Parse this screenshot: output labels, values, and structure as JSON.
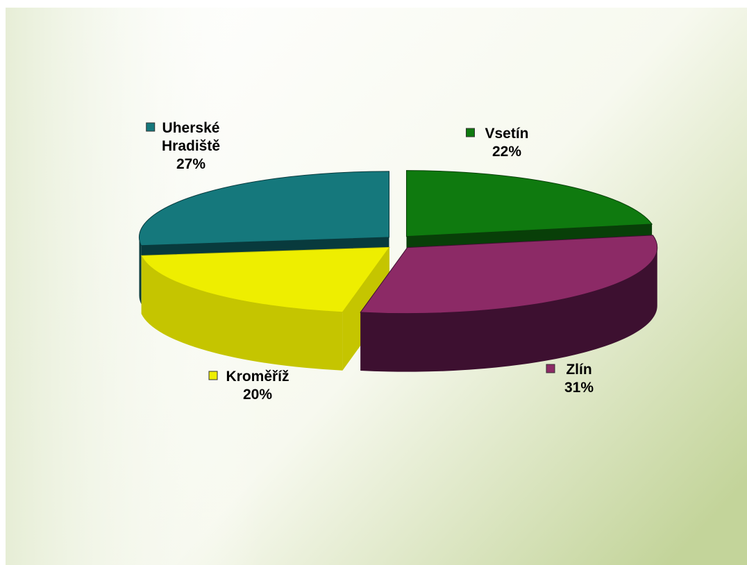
{
  "chart_data": {
    "type": "pie",
    "three_d": true,
    "exploded": true,
    "slices": [
      {
        "name": "Vsetín",
        "value": 22,
        "label_value": "22%",
        "color": "#0f7a0f",
        "side_color": "#083f08"
      },
      {
        "name": "Zlín",
        "value": 31,
        "label_value": "31%",
        "color": "#8c2a66",
        "side_color": "#3d1030"
      },
      {
        "name": "Kroměříž",
        "value": 20,
        "label_value": "20%",
        "color": "#eeee00",
        "side_color": "#c5c500"
      },
      {
        "name": "Uherské Hradiště",
        "name_lines": [
          "Uherské",
          "Hradiště"
        ],
        "value": 27,
        "label_value": "27%",
        "color": "#15787c",
        "side_color": "#083a3d"
      }
    ],
    "background": {
      "from": "#ffffff",
      "to": "#c3d49a"
    }
  }
}
